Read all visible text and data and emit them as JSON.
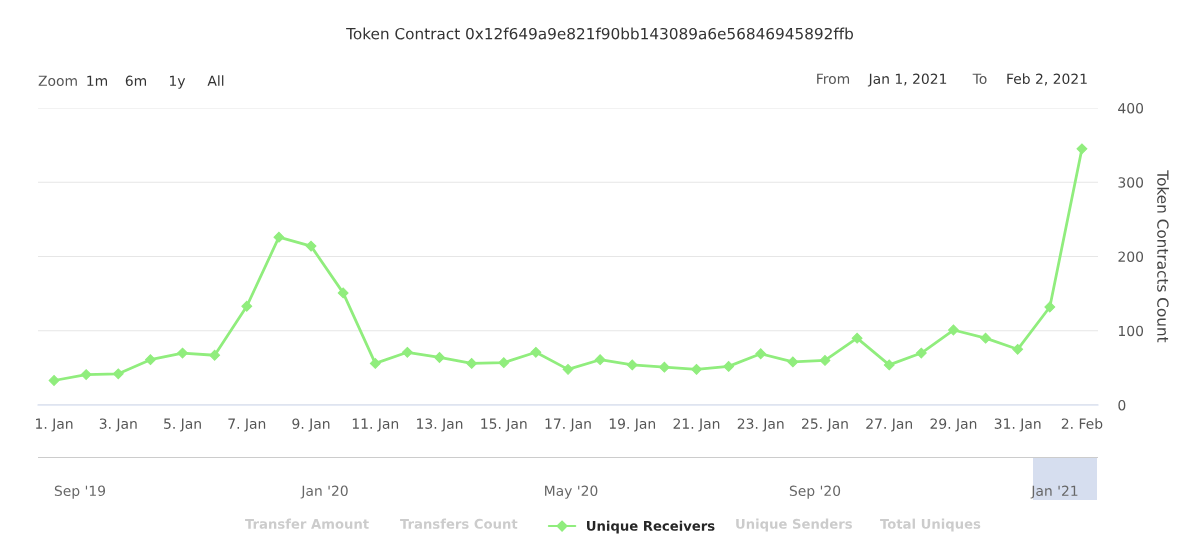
{
  "chart_data": {
    "type": "line",
    "title": "Token Contract 0x12f649a9e821f90bb143089a6e56846945892ffb",
    "x": [
      "2021-01-01",
      "2021-01-02",
      "2021-01-03",
      "2021-01-04",
      "2021-01-05",
      "2021-01-06",
      "2021-01-07",
      "2021-01-08",
      "2021-01-09",
      "2021-01-10",
      "2021-01-11",
      "2021-01-12",
      "2021-01-13",
      "2021-01-14",
      "2021-01-15",
      "2021-01-16",
      "2021-01-17",
      "2021-01-18",
      "2021-01-19",
      "2021-01-20",
      "2021-01-21",
      "2021-01-22",
      "2021-01-23",
      "2021-01-24",
      "2021-01-25",
      "2021-01-26",
      "2021-01-27",
      "2021-01-28",
      "2021-01-29",
      "2021-01-30",
      "2021-01-31",
      "2021-02-01",
      "2021-02-02"
    ],
    "series": [
      {
        "name": "Unique Receivers",
        "color": "#90ed7d",
        "values": [
          33,
          41,
          42,
          61,
          70,
          67,
          133,
          226,
          214,
          151,
          56,
          71,
          64,
          56,
          57,
          71,
          48,
          61,
          54,
          51,
          48,
          52,
          69,
          58,
          60,
          90,
          54,
          70,
          101,
          90,
          75,
          132,
          345
        ]
      }
    ],
    "ylabel": "Token Contracts Count",
    "xlim": [
      "2020-12-31T12:00",
      "2021-02-02T12:00"
    ],
    "xticks": [
      {
        "value": "2021-01-01",
        "label": "1. Jan"
      },
      {
        "value": "2021-01-03",
        "label": "3. Jan"
      },
      {
        "value": "2021-01-05",
        "label": "5. Jan"
      },
      {
        "value": "2021-01-07",
        "label": "7. Jan"
      },
      {
        "value": "2021-01-09",
        "label": "9. Jan"
      },
      {
        "value": "2021-01-11",
        "label": "11. Jan"
      },
      {
        "value": "2021-01-13",
        "label": "13. Jan"
      },
      {
        "value": "2021-01-15",
        "label": "15. Jan"
      },
      {
        "value": "2021-01-17",
        "label": "17. Jan"
      },
      {
        "value": "2021-01-19",
        "label": "19. Jan"
      },
      {
        "value": "2021-01-21",
        "label": "21. Jan"
      },
      {
        "value": "2021-01-23",
        "label": "23. Jan"
      },
      {
        "value": "2021-01-25",
        "label": "25. Jan"
      },
      {
        "value": "2021-01-27",
        "label": "27. Jan"
      },
      {
        "value": "2021-01-29",
        "label": "29. Jan"
      },
      {
        "value": "2021-01-31",
        "label": "31. Jan"
      },
      {
        "value": "2021-02-02",
        "label": "2. Feb"
      }
    ],
    "ylim": [
      0,
      400
    ],
    "yticks": [
      0,
      100,
      200,
      300,
      400
    ],
    "grid": "y",
    "marker": "diamond",
    "line_style": "solid",
    "legend": "bottom",
    "annotations": [
      "Zoom",
      "1m",
      "6m",
      "1y",
      "All",
      "From",
      "Jan 1, 2021",
      "To",
      "Feb 2, 2021",
      "Sep '19",
      "Jan '20",
      "May '20",
      "Sep '20",
      "Jan '21",
      "Transfer Amount",
      "Transfers Count",
      "Unique Senders",
      "Total Uniques"
    ]
  }
}
